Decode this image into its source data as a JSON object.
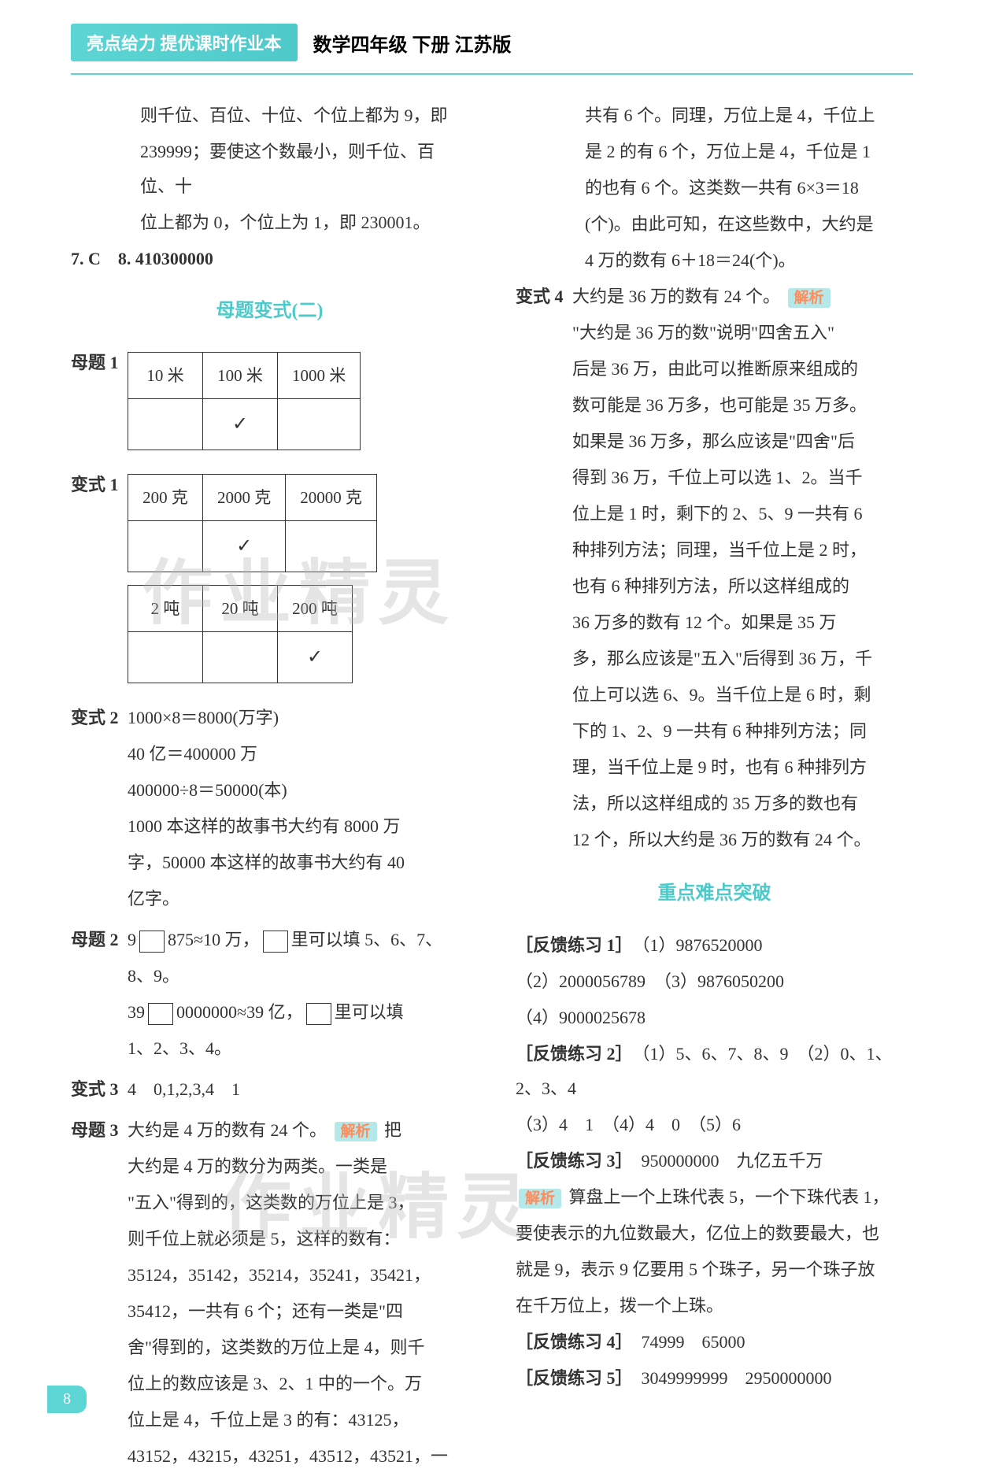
{
  "header": {
    "badge": "亮点给力 提优课时作业本",
    "subtitle": "数学四年级 下册 江苏版"
  },
  "left": {
    "intro_lines": [
      "则千位、百位、十位、个位上都为 9，即",
      "239999；要使这个数最小，则千位、百位、十",
      "位上都为 0，个位上为 1，即 230001。"
    ],
    "item7_8": "7. C　8. 410300000",
    "section_title": "母题变式(二)",
    "muti1_label": "母题 1",
    "table1": {
      "headers": [
        "10 米",
        "100 米",
        "1000 米"
      ],
      "check_col": 1
    },
    "bianshi1_label": "变式 1",
    "table2": {
      "headers": [
        "200 克",
        "2000 克",
        "20000 克"
      ],
      "check_col": 1
    },
    "table3": {
      "headers": [
        "2 吨",
        "20 吨",
        "200 吨"
      ],
      "check_col": 2
    },
    "bianshi2_label": "变式 2",
    "bianshi2_lines": [
      "1000×8＝8000(万字)",
      "40 亿＝400000 万",
      "400000÷8＝50000(本)",
      "1000 本这样的故事书大约有 8000 万",
      "字，50000 本这样的故事书大约有 40",
      "亿字。"
    ],
    "muti2_label": "母题 2",
    "muti2_line1a": "9",
    "muti2_line1b": "875≈10 万，",
    "muti2_line1c": "里可以填 5、6、7、",
    "muti2_line2": "8、9。",
    "muti2_line3a": "39",
    "muti2_line3b": "0000000≈39 亿，",
    "muti2_line3c": "里可以填",
    "muti2_line4": "1、2、3、4。",
    "bianshi3_label": "变式 3",
    "bianshi3_text": "4　0,1,2,3,4　1",
    "muti3_label": "母题 3",
    "muti3_first": "大约是 4 万的数有 24 个。",
    "analysis_label": "解析",
    "muti3_lines": [
      "把",
      "大约是 4 万的数分为两类。一类是",
      "\"五入\"得到的，这类数的万位上是 3，",
      "则千位上就必须是 5，这样的数有：",
      "35124，35142，35214，35241，35421，",
      "35412，一共有 6 个；还有一类是\"四",
      "舍\"得到的，这类数的万位上是 4，则千",
      "位上的数应该是 3、2、1 中的一个。万",
      "位上是 4，千位上是 3 的有：43125，",
      "43152，43215，43251，43512，43521，一"
    ]
  },
  "right": {
    "cont_lines": [
      "共有 6 个。同理，万位上是 4，千位上",
      "是 2 的有 6 个，万位上是 4，千位是 1",
      "的也有 6 个。这类数一共有 6×3＝18",
      "(个)。由此可知，在这些数中，大约是",
      "4 万的数有 6＋18＝24(个)。"
    ],
    "bianshi4_label": "变式 4",
    "bianshi4_first": "大约是 36 万的数有 24 个。",
    "bianshi4_lines": [
      "\"大约是 36 万的数\"说明\"四舍五入\"",
      "后是 36 万，由此可以推断原来组成的",
      "数可能是 36 万多，也可能是 35 万多。",
      "如果是 36 万多，那么应该是\"四舍\"后",
      "得到 36 万，千位上可以选 1、2。当千",
      "位上是 1 时，剩下的 2、5、9 一共有 6",
      "种排列方法；同理，当千位上是 2 时，",
      "也有 6 种排列方法，所以这样组成的",
      "36 万多的数有 12 个。如果是 35 万",
      "多，那么应该是\"五入\"后得到 36 万，千",
      "位上可以选 6、9。当千位上是 6 时，剩",
      "下的 1、2、9 一共有 6 种排列方法；同",
      "理，当千位上是 9 时，也有 6 种排列方",
      "法，所以这样组成的 35 万多的数也有",
      "12 个，所以大约是 36 万的数有 24 个。"
    ],
    "section_title2": "重点难点突破",
    "feedback1_label": "［反馈练习 1］",
    "feedback1_items": [
      "（1）9876520000",
      "（2）2000056789　（3）9876050200",
      "（4）9000025678"
    ],
    "feedback2_label": "［反馈练习 2］",
    "feedback2_items": [
      "（1）5、6、7、8、9　（2）0、1、2、3、4",
      "（3）4　1　（4）4　0　（5）6"
    ],
    "feedback3_label": "［反馈练习 3］",
    "feedback3_text": "950000000　九亿五千万",
    "feedback3_analysis": [
      "算盘上一个上珠代表 5，一个下珠代表 1，",
      "要使表示的九位数最大，亿位上的数要最大，也",
      "就是 9，表示 9 亿要用 5 个珠子，另一个珠子放",
      "在千万位上，拨一个上珠。"
    ],
    "feedback4_label": "［反馈练习 4］",
    "feedback4_text": "74999　65000",
    "feedback5_label": "［反馈练习 5］",
    "feedback5_text": "3049999999　2950000000"
  },
  "page_number": "8",
  "watermark_text": "作业精灵"
}
